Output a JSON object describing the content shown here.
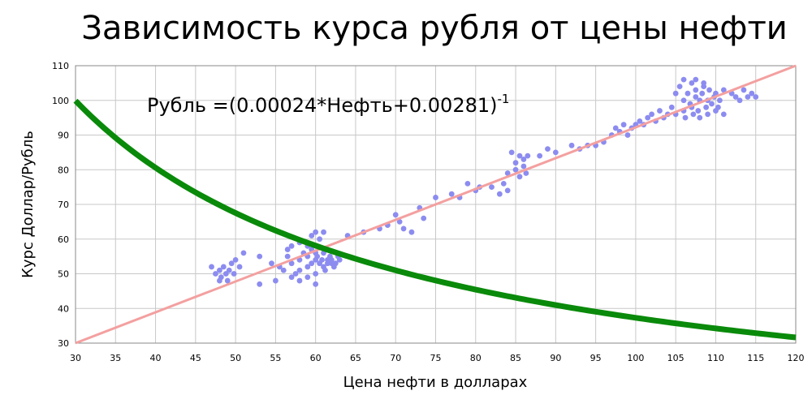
{
  "chart_data": {
    "type": "scatter",
    "title": "Зависимость курса рубля от цены нефти",
    "xlabel": "Цена нефти в долларах",
    "ylabel": "Курс Доллар/Рубль",
    "xlim": [
      30,
      120
    ],
    "ylim": [
      30,
      110
    ],
    "xticks": [
      30,
      35,
      40,
      45,
      50,
      55,
      60,
      65,
      70,
      75,
      80,
      85,
      90,
      95,
      100,
      105,
      110,
      115,
      120
    ],
    "yticks": [
      30,
      40,
      50,
      60,
      70,
      80,
      90,
      100,
      110
    ],
    "grid": true,
    "legend": "none",
    "annotation": {
      "text": "Рубль =(0.00024*Нефть+0.00281)",
      "superscript": "-1"
    },
    "colors": {
      "points": "#8c8cf0",
      "fit_line": "#f4a0a0",
      "curve": "#0a8a0a",
      "grid": "#c8c8c8"
    },
    "series": [
      {
        "kind": "points",
        "points": [
          [
            47,
            52
          ],
          [
            47.5,
            50
          ],
          [
            48,
            51
          ],
          [
            48.2,
            49
          ],
          [
            48.5,
            52
          ],
          [
            48.8,
            50
          ],
          [
            49,
            48
          ],
          [
            49.2,
            51
          ],
          [
            49.5,
            53
          ],
          [
            50,
            54
          ],
          [
            50.5,
            52
          ],
          [
            51,
            56
          ],
          [
            49.8,
            50
          ],
          [
            48,
            48
          ],
          [
            53,
            55
          ],
          [
            53,
            47
          ],
          [
            54.5,
            53
          ],
          [
            55,
            48
          ],
          [
            55.5,
            52
          ],
          [
            56,
            51
          ],
          [
            56.5,
            55
          ],
          [
            57,
            53
          ],
          [
            57,
            49
          ],
          [
            57.5,
            50
          ],
          [
            58,
            54
          ],
          [
            58,
            51
          ],
          [
            58,
            48
          ],
          [
            58.5,
            56
          ],
          [
            59,
            55
          ],
          [
            59,
            52
          ],
          [
            59,
            49
          ],
          [
            59.5,
            57
          ],
          [
            59.5,
            53
          ],
          [
            60,
            54
          ],
          [
            60,
            50
          ],
          [
            60,
            47
          ],
          [
            60.2,
            55
          ],
          [
            60.5,
            53
          ],
          [
            60.8,
            54
          ],
          [
            61,
            56
          ],
          [
            61,
            52
          ],
          [
            61.2,
            51
          ],
          [
            61.5,
            53
          ],
          [
            61.8,
            55
          ],
          [
            62,
            54
          ],
          [
            62.3,
            52
          ],
          [
            62.5,
            53
          ],
          [
            62.8,
            55
          ],
          [
            63,
            54
          ],
          [
            60,
            62
          ],
          [
            60.5,
            60
          ],
          [
            59.5,
            61
          ],
          [
            61,
            62
          ],
          [
            58,
            59
          ],
          [
            57,
            58
          ],
          [
            56.5,
            57
          ],
          [
            60,
            56
          ],
          [
            59,
            58
          ],
          [
            61.5,
            54
          ],
          [
            62,
            53
          ],
          [
            64,
            61
          ],
          [
            66,
            62
          ],
          [
            68,
            63
          ],
          [
            69,
            64
          ],
          [
            70,
            67
          ],
          [
            70.5,
            65
          ],
          [
            71,
            63
          ],
          [
            72,
            62
          ],
          [
            73,
            69
          ],
          [
            73.5,
            66
          ],
          [
            75,
            72
          ],
          [
            77,
            73
          ],
          [
            78,
            72
          ],
          [
            79,
            76
          ],
          [
            80,
            74
          ],
          [
            80.5,
            75
          ],
          [
            82,
            75
          ],
          [
            83,
            73
          ],
          [
            83.5,
            76
          ],
          [
            84,
            79
          ],
          [
            84.5,
            85
          ],
          [
            85,
            80
          ],
          [
            85,
            82
          ],
          [
            85.5,
            84
          ],
          [
            86,
            81
          ],
          [
            86,
            83
          ],
          [
            86.3,
            79
          ],
          [
            86.5,
            84
          ],
          [
            85.5,
            78
          ],
          [
            84,
            74
          ],
          [
            88,
            84
          ],
          [
            89,
            86
          ],
          [
            90,
            85
          ],
          [
            92,
            87
          ],
          [
            93,
            86
          ],
          [
            94,
            87
          ],
          [
            95,
            87
          ],
          [
            96,
            88
          ],
          [
            97,
            90
          ],
          [
            97.5,
            92
          ],
          [
            98,
            91
          ],
          [
            98.5,
            93
          ],
          [
            99,
            90
          ],
          [
            99.5,
            92
          ],
          [
            100,
            93
          ],
          [
            100.5,
            94
          ],
          [
            101,
            93
          ],
          [
            101.5,
            95
          ],
          [
            102,
            96
          ],
          [
            102.5,
            94
          ],
          [
            103,
            97
          ],
          [
            103.5,
            95
          ],
          [
            104,
            96
          ],
          [
            104.5,
            98
          ],
          [
            105,
            96
          ],
          [
            105,
            102
          ],
          [
            105.5,
            104
          ],
          [
            106,
            100
          ],
          [
            106,
            97
          ],
          [
            106.2,
            95
          ],
          [
            106.5,
            102
          ],
          [
            106.8,
            99
          ],
          [
            107,
            105
          ],
          [
            107,
            98
          ],
          [
            107.2,
            96
          ],
          [
            107.5,
            101
          ],
          [
            107.5,
            103
          ],
          [
            107.8,
            97
          ],
          [
            108,
            100
          ],
          [
            108,
            95
          ],
          [
            108.3,
            102
          ],
          [
            108.5,
            104
          ],
          [
            108.8,
            98
          ],
          [
            109,
            100
          ],
          [
            109,
            96
          ],
          [
            109.2,
            103
          ],
          [
            109.5,
            99
          ],
          [
            109.8,
            101
          ],
          [
            110,
            97
          ],
          [
            110,
            102
          ],
          [
            110.3,
            98
          ],
          [
            110.5,
            100
          ],
          [
            111,
            96
          ],
          [
            111,
            103
          ],
          [
            112,
            102
          ],
          [
            112.5,
            101
          ],
          [
            113,
            100
          ],
          [
            113.5,
            103
          ],
          [
            114,
            101
          ],
          [
            114.5,
            102
          ],
          [
            115,
            101
          ],
          [
            106,
            106
          ],
          [
            107.5,
            106
          ],
          [
            108.5,
            105
          ]
        ]
      },
      {
        "kind": "linear_fit",
        "points": [
          [
            30,
            30
          ],
          [
            120,
            110
          ]
        ]
      },
      {
        "kind": "model_curve",
        "function": "1/(0.00024*x+0.00281)",
        "a": 0.00024,
        "b": 0.00281
      }
    ]
  }
}
